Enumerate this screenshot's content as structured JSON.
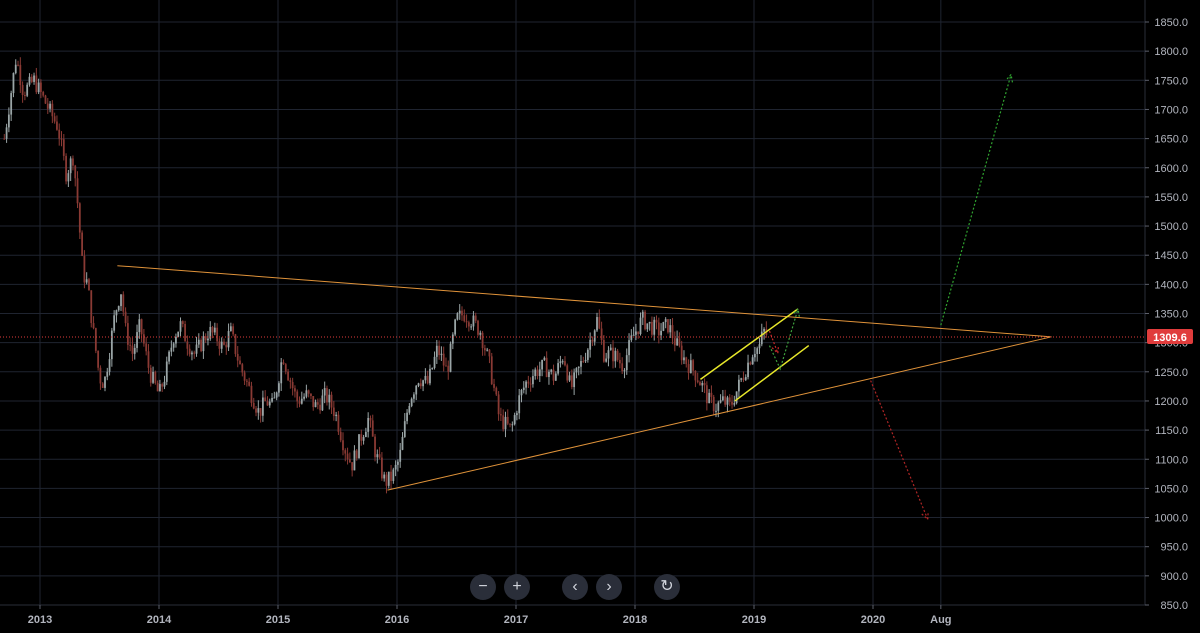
{
  "chart_data": {
    "type": "candlestick",
    "instrument_price_label": "1309.6",
    "y_axis": {
      "ticks": [
        "1850.0",
        "1800.0",
        "1750.0",
        "1700.0",
        "1650.0",
        "1600.0",
        "1550.0",
        "1500.0",
        "1450.0",
        "1400.0",
        "1350.0",
        "1300.0",
        "1250.0",
        "1200.0",
        "1150.0",
        "1100.0",
        "1050.0",
        "1000.0",
        "950.0",
        "900.0",
        "850.0"
      ],
      "ylim": [
        850,
        1850
      ]
    },
    "x_axis": {
      "ticks": [
        "2013",
        "2014",
        "2015",
        "2016",
        "2017",
        "2018",
        "2019",
        "2020",
        "Aug"
      ],
      "xlim": [
        2012.7,
        2021.75
      ]
    },
    "grid": true,
    "current_price": 1309.6,
    "price_path": [
      [
        2012.7,
        1650
      ],
      [
        2012.75,
        1720
      ],
      [
        2012.8,
        1790
      ],
      [
        2012.86,
        1730
      ],
      [
        2012.95,
        1750
      ],
      [
        2013.05,
        1710
      ],
      [
        2013.15,
        1670
      ],
      [
        2013.22,
        1590
      ],
      [
        2013.28,
        1620
      ],
      [
        2013.32,
        1530
      ],
      [
        2013.36,
        1420
      ],
      [
        2013.4,
        1400
      ],
      [
        2013.44,
        1330
      ],
      [
        2013.5,
        1240
      ],
      [
        2013.54,
        1230
      ],
      [
        2013.58,
        1280
      ],
      [
        2013.63,
        1350
      ],
      [
        2013.68,
        1390
      ],
      [
        2013.72,
        1320
      ],
      [
        2013.78,
        1280
      ],
      [
        2013.84,
        1330
      ],
      [
        2013.92,
        1250
      ],
      [
        2014.0,
        1210
      ],
      [
        2014.06,
        1250
      ],
      [
        2014.12,
        1310
      ],
      [
        2014.18,
        1330
      ],
      [
        2014.24,
        1300
      ],
      [
        2014.3,
        1280
      ],
      [
        2014.36,
        1300
      ],
      [
        2014.42,
        1320
      ],
      [
        2014.48,
        1310
      ],
      [
        2014.54,
        1290
      ],
      [
        2014.6,
        1320
      ],
      [
        2014.68,
        1260
      ],
      [
        2014.76,
        1220
      ],
      [
        2014.84,
        1180
      ],
      [
        2014.9,
        1200
      ],
      [
        2014.96,
        1190
      ],
      [
        2015.04,
        1280
      ],
      [
        2015.08,
        1250
      ],
      [
        2015.16,
        1200
      ],
      [
        2015.24,
        1210
      ],
      [
        2015.32,
        1190
      ],
      [
        2015.4,
        1210
      ],
      [
        2015.48,
        1180
      ],
      [
        2015.56,
        1120
      ],
      [
        2015.62,
        1090
      ],
      [
        2015.7,
        1140
      ],
      [
        2015.76,
        1170
      ],
      [
        2015.82,
        1110
      ],
      [
        2015.9,
        1060
      ],
      [
        2015.96,
        1070
      ],
      [
        2016.02,
        1100
      ],
      [
        2016.1,
        1200
      ],
      [
        2016.18,
        1240
      ],
      [
        2016.26,
        1230
      ],
      [
        2016.34,
        1290
      ],
      [
        2016.42,
        1250
      ],
      [
        2016.5,
        1340
      ],
      [
        2016.56,
        1350
      ],
      [
        2016.62,
        1340
      ],
      [
        2016.7,
        1320
      ],
      [
        2016.78,
        1260
      ],
      [
        2016.86,
        1170
      ],
      [
        2016.96,
        1150
      ],
      [
        2017.02,
        1200
      ],
      [
        2017.08,
        1230
      ],
      [
        2017.16,
        1250
      ],
      [
        2017.24,
        1260
      ],
      [
        2017.32,
        1240
      ],
      [
        2017.4,
        1280
      ],
      [
        2017.46,
        1220
      ],
      [
        2017.52,
        1250
      ],
      [
        2017.6,
        1290
      ],
      [
        2017.68,
        1340
      ],
      [
        2017.74,
        1280
      ],
      [
        2017.82,
        1280
      ],
      [
        2017.9,
        1260
      ],
      [
        2017.98,
        1310
      ],
      [
        2018.06,
        1340
      ],
      [
        2018.12,
        1330
      ],
      [
        2018.2,
        1320
      ],
      [
        2018.28,
        1330
      ],
      [
        2018.34,
        1300
      ],
      [
        2018.42,
        1270
      ],
      [
        2018.5,
        1250
      ],
      [
        2018.58,
        1220
      ],
      [
        2018.62,
        1200
      ],
      [
        2018.68,
        1190
      ],
      [
        2018.74,
        1200
      ],
      [
        2018.8,
        1190
      ],
      [
        2018.86,
        1220
      ],
      [
        2018.92,
        1250
      ],
      [
        2019.0,
        1290
      ],
      [
        2019.04,
        1290
      ],
      [
        2019.08,
        1320
      ],
      [
        2019.12,
        1310
      ]
    ],
    "drawings": [
      {
        "kind": "line",
        "color": "#e0933a",
        "points": [
          [
            2013.65,
            1432
          ],
          [
            2021.5,
            1310
          ]
        ]
      },
      {
        "kind": "line",
        "color": "#e0933a",
        "points": [
          [
            2015.92,
            1047
          ],
          [
            2021.5,
            1310
          ]
        ]
      },
      {
        "kind": "line",
        "color": "#e8e82a",
        "points": [
          [
            2018.55,
            1237
          ],
          [
            2019.37,
            1358
          ]
        ]
      },
      {
        "kind": "line",
        "color": "#e8e82a",
        "points": [
          [
            2018.84,
            1200
          ],
          [
            2019.46,
            1295
          ]
        ]
      },
      {
        "kind": "arrow",
        "color": "#3fa33f",
        "points": [
          [
            2019.13,
            1295
          ],
          [
            2019.22,
            1255
          ],
          [
            2019.37,
            1358
          ]
        ]
      },
      {
        "kind": "arrow",
        "color": "#cc2a2a",
        "points": [
          [
            2019.13,
            1320
          ],
          [
            2019.2,
            1282
          ]
        ]
      },
      {
        "kind": "arrow",
        "color": "#2fa32f",
        "points": [
          [
            2020.57,
            1330
          ],
          [
            2021.16,
            1760
          ]
        ]
      },
      {
        "kind": "arrow",
        "color": "#b02525",
        "points": [
          [
            2019.98,
            1235
          ],
          [
            2020.46,
            997
          ]
        ]
      }
    ]
  },
  "price_line": {
    "color": "#e03c3c"
  },
  "colors": {
    "up": "#9aa5a6",
    "down": "#8a3a34",
    "grid": "#1f2430",
    "axis_text": "#b2b5be"
  },
  "toolbar": {
    "zoom_out_icon": "−",
    "zoom_in_icon": "+",
    "scroll_left_icon": "‹",
    "scroll_right_icon": "›",
    "reset_icon": "↻"
  }
}
